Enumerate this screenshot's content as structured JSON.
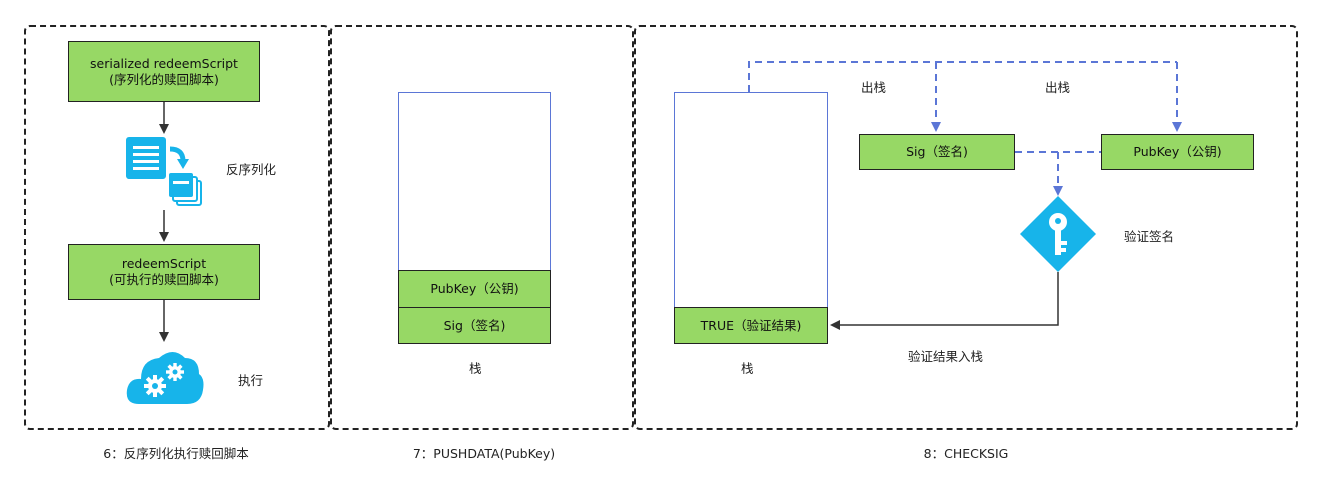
{
  "panel6": {
    "serialized_box": {
      "line1": "serialized redeemScript",
      "line2": "(序列化的赎回脚本)"
    },
    "deserialize_label": "反序列化",
    "redeem_box": {
      "line1": "redeemScript",
      "line2": "(可执行的赎回脚本)"
    },
    "execute_label": "执行",
    "caption": "6：反序列化执行赎回脚本",
    "icons": [
      "document-convert-icon",
      "cloud-gears-icon"
    ]
  },
  "panel7": {
    "pubkey_item": "PubKey（公钥)",
    "sig_item": "Sig（签名)",
    "stack_label": "栈",
    "caption": "7：PUSHDATA(PubKey)"
  },
  "panel8": {
    "true_item": "TRUE（验证结果)",
    "stack_label": "栈",
    "pop_label_1": "出栈",
    "pop_label_2": "出栈",
    "sig_box": "Sig（签名)",
    "pubkey_box": "PubKey（公钥)",
    "verify_label": "验证签名",
    "push_result_label": "验证结果入栈",
    "caption": "8：CHECKSIG",
    "icons": [
      "key-diamond-icon"
    ]
  },
  "colors": {
    "box_fill": "#97d865",
    "stack_border": "#5b76d6",
    "dashed_arrow": "#5b76d6",
    "icon_blue": "#17b4ea"
  }
}
